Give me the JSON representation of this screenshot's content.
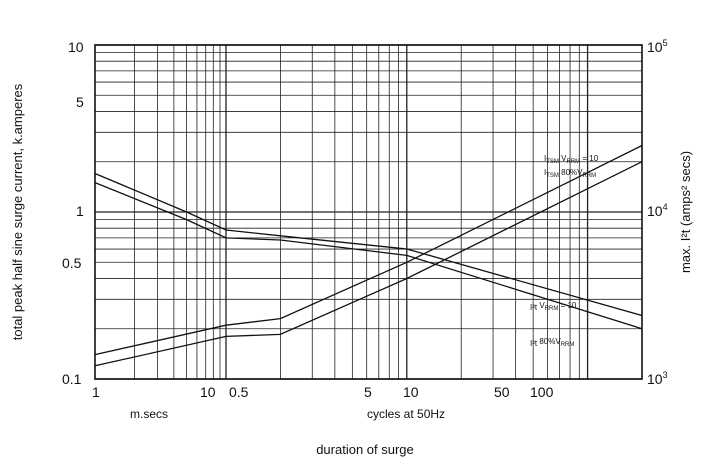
{
  "chart_data": {
    "type": "line",
    "xlabel": "duration of surge",
    "ylabel": "total peak half sine surge current, k.amperes",
    "y2label": "max. I²t (amps² secs)",
    "x_scale": "log",
    "y_scale": "log",
    "y2_scale": "log",
    "ylim": [
      0.1,
      10
    ],
    "y2lim": [
      1000,
      100000
    ],
    "x_tick_labels": [
      "1",
      "10",
      "0.5",
      "5",
      "10",
      "50",
      "100"
    ],
    "x_unit_labels": [
      "m.secs",
      "cycles at 50Hz"
    ],
    "y_tick_labels": [
      "10",
      "5",
      "1",
      "0.5",
      "0.1"
    ],
    "y2_tick_labels": [
      "10",
      "10",
      "10"
    ],
    "y2_tick_exponents": [
      "5",
      "4",
      "3"
    ],
    "annotations": [
      {
        "main": "I",
        "sub": "TSM",
        "rest": " V",
        "sub2": "RRM",
        "tail": " = 10"
      },
      {
        "main": "I",
        "sub": "TSM",
        "rest": " 80%V",
        "sub2": "RRM",
        "tail": ""
      },
      {
        "main": "I²t",
        "sub": "",
        "rest": " V",
        "sub2": "RRM",
        "tail": " = 10"
      },
      {
        "main": "I²t",
        "sub": "",
        "rest": " 80%V",
        "sub2": "RRM",
        "tail": ""
      }
    ],
    "series": [
      {
        "axis": "left",
        "x_ms": [
          1,
          5,
          10,
          20,
          100,
          2000
        ],
        "y": [
          1.7,
          1.0,
          0.78,
          0.72,
          0.6,
          0.24
        ]
      },
      {
        "axis": "left",
        "x_ms": [
          1,
          5,
          10,
          20,
          100,
          2000
        ],
        "y": [
          1.5,
          0.9,
          0.7,
          0.68,
          0.55,
          0.2
        ]
      },
      {
        "axis": "right",
        "x_ms": [
          1,
          10,
          20,
          100,
          2000
        ],
        "y": [
          1400,
          2100,
          2300,
          5000,
          25000
        ]
      },
      {
        "axis": "right",
        "x_ms": [
          1,
          10,
          20,
          100,
          2000
        ],
        "y": [
          1200,
          1800,
          1850,
          4000,
          20000
        ]
      }
    ]
  }
}
